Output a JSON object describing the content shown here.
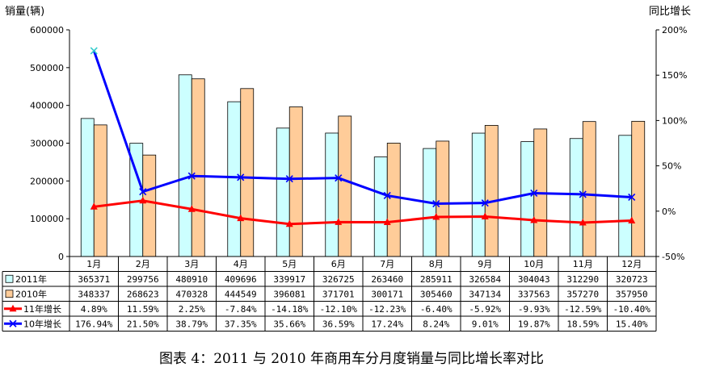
{
  "caption": "图表 4：2011 与 2010 年商用车分月度销量与同比增长率对比",
  "chart_data": {
    "type": "bar",
    "ylabel": "销量(辆)",
    "y2label": "同比增长",
    "ylim": [
      0,
      600000
    ],
    "y2lim": [
      -0.5,
      2.0
    ],
    "yticks": [
      "0",
      "100000",
      "200000",
      "300000",
      "400000",
      "500000",
      "600000"
    ],
    "y2ticks": [
      "-50%",
      "0%",
      "50%",
      "100%",
      "150%",
      "200%"
    ],
    "grid": false,
    "categories": [
      "1月",
      "2月",
      "3月",
      "4月",
      "5月",
      "6月",
      "7月",
      "8月",
      "9月",
      "10月",
      "11月",
      "12月"
    ],
    "series": [
      {
        "name": "2011年",
        "type": "bar",
        "axis": "left",
        "color": "#ccffff",
        "values": [
          365371,
          299756,
          480910,
          409696,
          339917,
          326725,
          263460,
          285911,
          326584,
          304043,
          312290,
          320723
        ],
        "labels": [
          "365371",
          "299756",
          "480910",
          "409696",
          "339917",
          "326725",
          "263460",
          "285911",
          "326584",
          "304043",
          "312290",
          "320723"
        ]
      },
      {
        "name": "2010年",
        "type": "bar",
        "axis": "left",
        "color": "#ffcc99",
        "values": [
          348337,
          268623,
          470328,
          444549,
          396081,
          371701,
          300171,
          305460,
          347134,
          337563,
          357270,
          357950
        ],
        "labels": [
          "348337",
          "268623",
          "470328",
          "444549",
          "396081",
          "371701",
          "300171",
          "305460",
          "347134",
          "337563",
          "357270",
          "357950"
        ]
      },
      {
        "name": "11年增长",
        "type": "line",
        "axis": "right",
        "color": "#ff0000",
        "marker": "triangle",
        "values": [
          0.0489,
          0.1159,
          0.0225,
          -0.0784,
          -0.1418,
          -0.121,
          -0.1223,
          -0.064,
          -0.0592,
          -0.0993,
          -0.1259,
          -0.104
        ],
        "labels": [
          "4.89%",
          "11.59%",
          "2.25%",
          "-7.84%",
          "-14.18%",
          "-12.10%",
          "-12.23%",
          "-6.40%",
          "-5.92%",
          "-9.93%",
          "-12.59%",
          "-10.40%"
        ]
      },
      {
        "name": "10年增长",
        "type": "line",
        "axis": "right",
        "color": "#0000ff",
        "marker": "x",
        "values": [
          1.7694,
          0.215,
          0.3879,
          0.3735,
          0.3566,
          0.3659,
          0.1724,
          0.0824,
          0.0901,
          0.1987,
          0.1859,
          0.154
        ],
        "labels": [
          "176.94%",
          "21.50%",
          "38.79%",
          "37.35%",
          "35.66%",
          "36.59%",
          "17.24%",
          "8.24%",
          "9.01%",
          "19.87%",
          "18.59%",
          "15.40%"
        ]
      }
    ]
  }
}
